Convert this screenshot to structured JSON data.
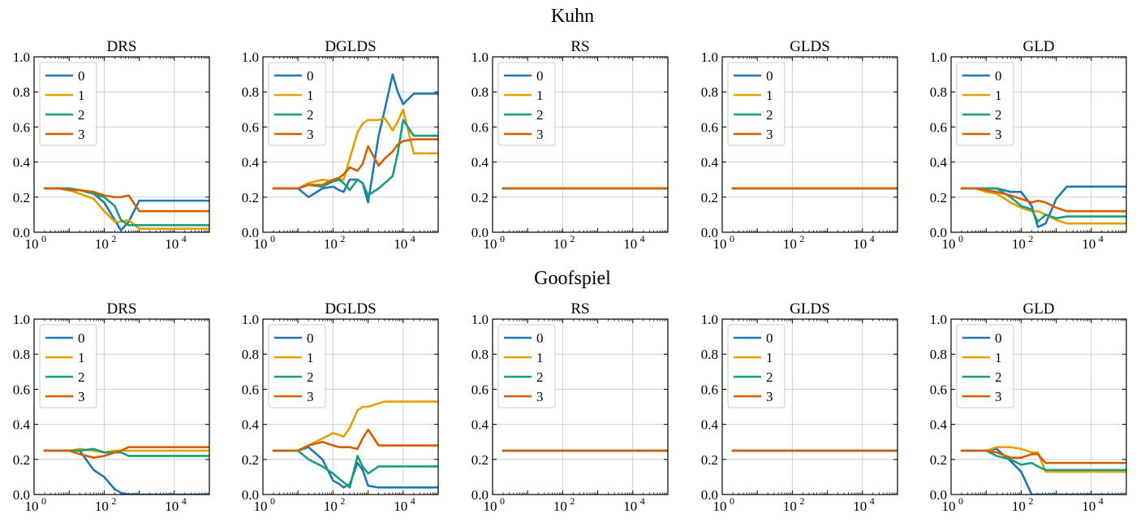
{
  "colors": {
    "0": "#1f77b4",
    "1": "#e69f00",
    "2": "#16a07a",
    "3": "#d55e00"
  },
  "legend_labels": [
    "0",
    "1",
    "2",
    "3"
  ],
  "axes": {
    "xscale": "log",
    "xlim": [
      1,
      100000
    ],
    "xticks": [
      {
        "v": 1,
        "base": "10",
        "exp": "0"
      },
      {
        "v": 100,
        "base": "10",
        "exp": "2"
      },
      {
        "v": 10000,
        "base": "10",
        "exp": "4"
      }
    ],
    "ylim": [
      0.0,
      1.0
    ],
    "yticks": [
      "0.0",
      "0.2",
      "0.4",
      "0.6",
      "0.8",
      "1.0"
    ],
    "grid": true,
    "legend_placement": "top-left"
  },
  "chart_data": [
    {
      "row_title": "Kuhn",
      "panels": [
        {
          "title": "DRS",
          "type": "line",
          "x": [
            2,
            5,
            10,
            20,
            50,
            100,
            200,
            300,
            500,
            1000,
            2000,
            5000,
            10000,
            100000
          ],
          "series": [
            {
              "name": "0",
              "values": [
                0.25,
                0.25,
                0.25,
                0.24,
                0.22,
                0.17,
                0.07,
                0.01,
                0.06,
                0.18,
                0.18,
                0.18,
                0.18,
                0.18
              ]
            },
            {
              "name": "1",
              "values": [
                0.25,
                0.25,
                0.24,
                0.22,
                0.19,
                0.12,
                0.06,
                0.06,
                0.07,
                0.02,
                0.02,
                0.02,
                0.02,
                0.02
              ]
            },
            {
              "name": "2",
              "values": [
                0.25,
                0.25,
                0.25,
                0.24,
                0.22,
                0.2,
                0.15,
                0.07,
                0.04,
                0.04,
                0.04,
                0.04,
                0.04,
                0.04
              ]
            },
            {
              "name": "3",
              "values": [
                0.25,
                0.25,
                0.24,
                0.24,
                0.23,
                0.21,
                0.2,
                0.2,
                0.21,
                0.12,
                0.12,
                0.12,
                0.12,
                0.12
              ]
            }
          ]
        },
        {
          "title": "DGLDS",
          "type": "line",
          "x": [
            2,
            5,
            10,
            20,
            50,
            100,
            150,
            200,
            300,
            500,
            700,
            1000,
            2000,
            3000,
            5000,
            7000,
            10000,
            20000,
            100000
          ],
          "series": [
            {
              "name": "0",
              "values": [
                0.25,
                0.25,
                0.25,
                0.2,
                0.25,
                0.26,
                0.24,
                0.23,
                0.3,
                0.3,
                0.28,
                0.17,
                0.55,
                0.7,
                0.9,
                0.8,
                0.73,
                0.79,
                0.79
              ]
            },
            {
              "name": "1",
              "values": [
                0.25,
                0.25,
                0.25,
                0.28,
                0.3,
                0.29,
                0.3,
                0.3,
                0.42,
                0.57,
                0.62,
                0.64,
                0.64,
                0.65,
                0.58,
                0.63,
                0.7,
                0.45,
                0.45
              ]
            },
            {
              "name": "2",
              "values": [
                0.25,
                0.25,
                0.25,
                0.27,
                0.26,
                0.29,
                0.3,
                0.28,
                0.24,
                0.3,
                0.28,
                0.21,
                0.25,
                0.28,
                0.32,
                0.45,
                0.64,
                0.55,
                0.55
              ]
            },
            {
              "name": "3",
              "values": [
                0.25,
                0.25,
                0.25,
                0.27,
                0.27,
                0.3,
                0.31,
                0.33,
                0.37,
                0.35,
                0.39,
                0.49,
                0.38,
                0.42,
                0.46,
                0.5,
                0.52,
                0.53,
                0.53
              ]
            }
          ]
        },
        {
          "title": "RS",
          "type": "line",
          "x": [
            2,
            100000
          ],
          "series": [
            {
              "name": "0",
              "values": [
                0.25,
                0.25
              ]
            },
            {
              "name": "1",
              "values": [
                0.25,
                0.25
              ]
            },
            {
              "name": "2",
              "values": [
                0.25,
                0.25
              ]
            },
            {
              "name": "3",
              "values": [
                0.25,
                0.25
              ]
            }
          ]
        },
        {
          "title": "GLDS",
          "type": "line",
          "x": [
            2,
            100000
          ],
          "series": [
            {
              "name": "0",
              "values": [
                0.25,
                0.25
              ]
            },
            {
              "name": "1",
              "values": [
                0.25,
                0.25
              ]
            },
            {
              "name": "2",
              "values": [
                0.25,
                0.25
              ]
            },
            {
              "name": "3",
              "values": [
                0.25,
                0.25
              ]
            }
          ]
        },
        {
          "title": "GLD",
          "type": "line",
          "x": [
            2,
            5,
            10,
            20,
            50,
            100,
            200,
            300,
            500,
            1000,
            2000,
            5000,
            10000,
            100000
          ],
          "series": [
            {
              "name": "0",
              "values": [
                0.25,
                0.25,
                0.25,
                0.25,
                0.23,
                0.23,
                0.15,
                0.03,
                0.05,
                0.19,
                0.26,
                0.26,
                0.26,
                0.26
              ]
            },
            {
              "name": "1",
              "values": [
                0.25,
                0.25,
                0.23,
                0.22,
                0.17,
                0.14,
                0.12,
                0.12,
                0.1,
                0.07,
                0.05,
                0.05,
                0.05,
                0.05
              ]
            },
            {
              "name": "2",
              "values": [
                0.25,
                0.25,
                0.25,
                0.25,
                0.2,
                0.15,
                0.13,
                0.06,
                0.1,
                0.08,
                0.09,
                0.09,
                0.09,
                0.09
              ]
            },
            {
              "name": "3",
              "values": [
                0.25,
                0.25,
                0.24,
                0.23,
                0.21,
                0.19,
                0.17,
                0.18,
                0.17,
                0.14,
                0.12,
                0.12,
                0.12,
                0.12
              ]
            }
          ]
        }
      ]
    },
    {
      "row_title": "Goofspiel",
      "panels": [
        {
          "title": "DRS",
          "type": "line",
          "x": [
            2,
            5,
            10,
            20,
            50,
            100,
            200,
            300,
            500,
            1000,
            2000,
            5000,
            10000,
            100000
          ],
          "series": [
            {
              "name": "0",
              "values": [
                0.25,
                0.25,
                0.25,
                0.25,
                0.14,
                0.1,
                0.03,
                0.01,
                0.0,
                0.0,
                0.0,
                0.0,
                0.0,
                0.0
              ]
            },
            {
              "name": "1",
              "values": [
                0.25,
                0.25,
                0.25,
                0.26,
                0.25,
                0.24,
                0.25,
                0.25,
                0.25,
                0.25,
                0.25,
                0.25,
                0.25,
                0.25
              ]
            },
            {
              "name": "2",
              "values": [
                0.25,
                0.25,
                0.25,
                0.25,
                0.26,
                0.24,
                0.24,
                0.24,
                0.22,
                0.22,
                0.22,
                0.22,
                0.22,
                0.22
              ]
            },
            {
              "name": "3",
              "values": [
                0.25,
                0.25,
                0.25,
                0.23,
                0.21,
                0.22,
                0.24,
                0.25,
                0.27,
                0.27,
                0.27,
                0.27,
                0.27,
                0.27
              ]
            }
          ]
        },
        {
          "title": "DGLDS",
          "type": "line",
          "x": [
            2,
            5,
            10,
            20,
            50,
            100,
            150,
            200,
            300,
            500,
            700,
            1000,
            2000,
            3000,
            5000,
            10000,
            100000
          ],
          "series": [
            {
              "name": "0",
              "values": [
                0.25,
                0.25,
                0.25,
                0.27,
                0.2,
                0.08,
                0.06,
                0.04,
                0.06,
                0.18,
                0.14,
                0.05,
                0.04,
                0.04,
                0.04,
                0.04,
                0.04
              ]
            },
            {
              "name": "1",
              "values": [
                0.25,
                0.25,
                0.25,
                0.28,
                0.32,
                0.35,
                0.34,
                0.33,
                0.38,
                0.48,
                0.5,
                0.5,
                0.52,
                0.53,
                0.53,
                0.53,
                0.53
              ]
            },
            {
              "name": "2",
              "values": [
                0.25,
                0.25,
                0.25,
                0.2,
                0.16,
                0.12,
                0.09,
                0.07,
                0.04,
                0.22,
                0.16,
                0.12,
                0.16,
                0.16,
                0.16,
                0.16,
                0.16
              ]
            },
            {
              "name": "3",
              "values": [
                0.25,
                0.25,
                0.25,
                0.28,
                0.3,
                0.28,
                0.27,
                0.27,
                0.27,
                0.26,
                0.32,
                0.37,
                0.28,
                0.28,
                0.28,
                0.28,
                0.28
              ]
            }
          ]
        },
        {
          "title": "RS",
          "type": "line",
          "x": [
            2,
            10,
            100,
            1000,
            100000
          ],
          "series": [
            {
              "name": "0",
              "values": [
                0.25,
                0.25,
                0.25,
                0.25,
                0.25
              ]
            },
            {
              "name": "1",
              "values": [
                0.25,
                0.25,
                0.25,
                0.25,
                0.25
              ]
            },
            {
              "name": "2",
              "values": [
                0.25,
                0.25,
                0.25,
                0.25,
                0.25
              ]
            },
            {
              "name": "3",
              "values": [
                0.25,
                0.25,
                0.25,
                0.25,
                0.25
              ]
            }
          ]
        },
        {
          "title": "GLDS",
          "type": "line",
          "x": [
            2,
            100000
          ],
          "series": [
            {
              "name": "0",
              "values": [
                0.25,
                0.25
              ]
            },
            {
              "name": "1",
              "values": [
                0.25,
                0.25
              ]
            },
            {
              "name": "2",
              "values": [
                0.25,
                0.25
              ]
            },
            {
              "name": "3",
              "values": [
                0.25,
                0.25
              ]
            }
          ]
        },
        {
          "title": "GLD",
          "type": "line",
          "x": [
            2,
            5,
            10,
            20,
            50,
            100,
            200,
            300,
            500,
            1000,
            2000,
            5000,
            10000,
            100000
          ],
          "series": [
            {
              "name": "0",
              "values": [
                0.25,
                0.25,
                0.25,
                0.26,
                0.19,
                0.13,
                0.0,
                0.0,
                0.0,
                0.0,
                0.0,
                0.0,
                0.0,
                0.0
              ]
            },
            {
              "name": "1",
              "values": [
                0.25,
                0.25,
                0.25,
                0.27,
                0.27,
                0.26,
                0.24,
                0.24,
                0.13,
                0.13,
                0.13,
                0.13,
                0.13,
                0.13
              ]
            },
            {
              "name": "2",
              "values": [
                0.25,
                0.25,
                0.25,
                0.22,
                0.2,
                0.17,
                0.18,
                0.16,
                0.14,
                0.14,
                0.14,
                0.14,
                0.14,
                0.14
              ]
            },
            {
              "name": "3",
              "values": [
                0.25,
                0.25,
                0.25,
                0.24,
                0.21,
                0.21,
                0.23,
                0.23,
                0.18,
                0.18,
                0.18,
                0.18,
                0.18,
                0.18
              ]
            }
          ]
        }
      ]
    }
  ]
}
